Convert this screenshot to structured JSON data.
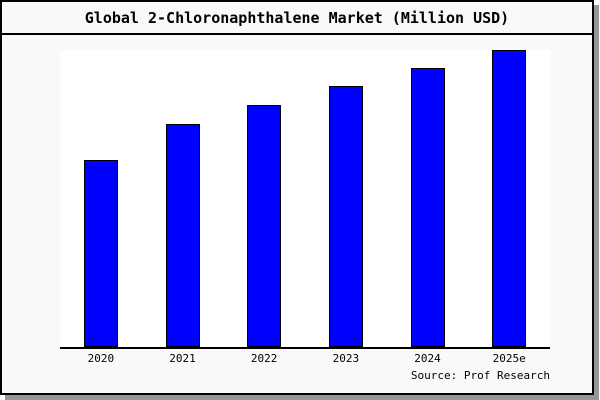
{
  "title": "Global 2-Chloronaphthalene Market (Million USD)",
  "source": "Source: Prof Research",
  "colors": {
    "bar": "#0000ff",
    "bar_border": "#000000",
    "figure_bg": "#f9f9f9",
    "plot_bg": "#ffffff",
    "frame": "#000000",
    "axis": "#000000",
    "shadow": "#969696",
    "text": "#000000"
  },
  "chart_data": {
    "type": "bar",
    "title": "Global 2-Chloronaphthalene Market (Million USD)",
    "categories": [
      "2020",
      "2021",
      "2022",
      "2023",
      "2024",
      "2025e"
    ],
    "values": [
      62.8,
      75.2,
      81.5,
      87.9,
      94.0,
      100.0
    ],
    "values_note": "No y-axis tick labels or data labels are shown in the image; values are estimated relative bar heights with 2025e normalized to 100.",
    "xlabel": "",
    "ylabel": "",
    "ylim": [
      0,
      100
    ],
    "y_axis_visible": false,
    "grid": false,
    "legend": false,
    "bar_color": "#0000ff",
    "source": "Source: Prof Research"
  }
}
